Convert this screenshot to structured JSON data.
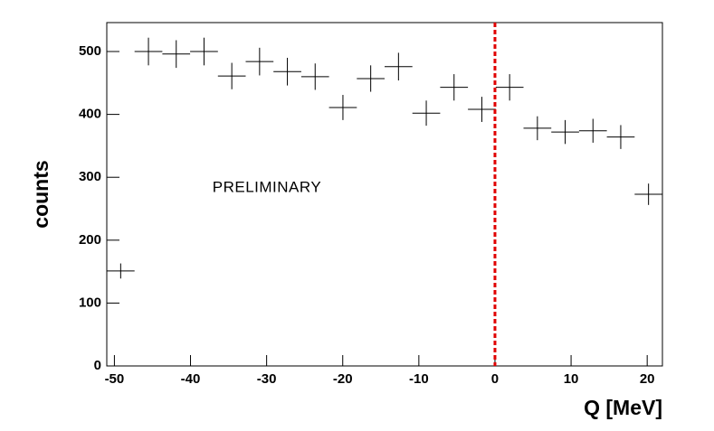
{
  "chart_data": {
    "type": "histogram",
    "xlabel": "Q [MeV]",
    "ylabel": "counts",
    "annotation": "PRELIMINARY",
    "bins": [
      -51,
      -47.35,
      -43.7,
      -40.05,
      -36.4,
      -32.75,
      -29.1,
      -25.45,
      -21.8,
      -18.15,
      -14.5,
      -10.85,
      -7.2,
      -3.55,
      0.1,
      3.75,
      7.4,
      11.05,
      14.7,
      18.35,
      22
    ],
    "values": [
      151,
      500,
      496,
      500,
      461,
      484,
      468,
      460,
      411,
      457,
      476,
      402,
      443,
      408,
      443,
      378,
      372,
      374,
      364,
      273
    ],
    "errors": [
      12,
      22,
      22,
      22,
      21,
      22,
      22,
      21,
      20,
      21,
      22,
      20,
      21,
      20,
      21,
      19,
      19,
      19,
      19,
      17
    ],
    "color": "#000000",
    "vline": {
      "x": 0,
      "color": "#e00000"
    },
    "xlim": [
      -51,
      22
    ],
    "xticks": [
      -50,
      -40,
      -30,
      -20,
      -10,
      0,
      10,
      20
    ],
    "ylim": [
      0,
      546
    ],
    "yticks": [
      0,
      100,
      200,
      300,
      400,
      500
    ]
  }
}
